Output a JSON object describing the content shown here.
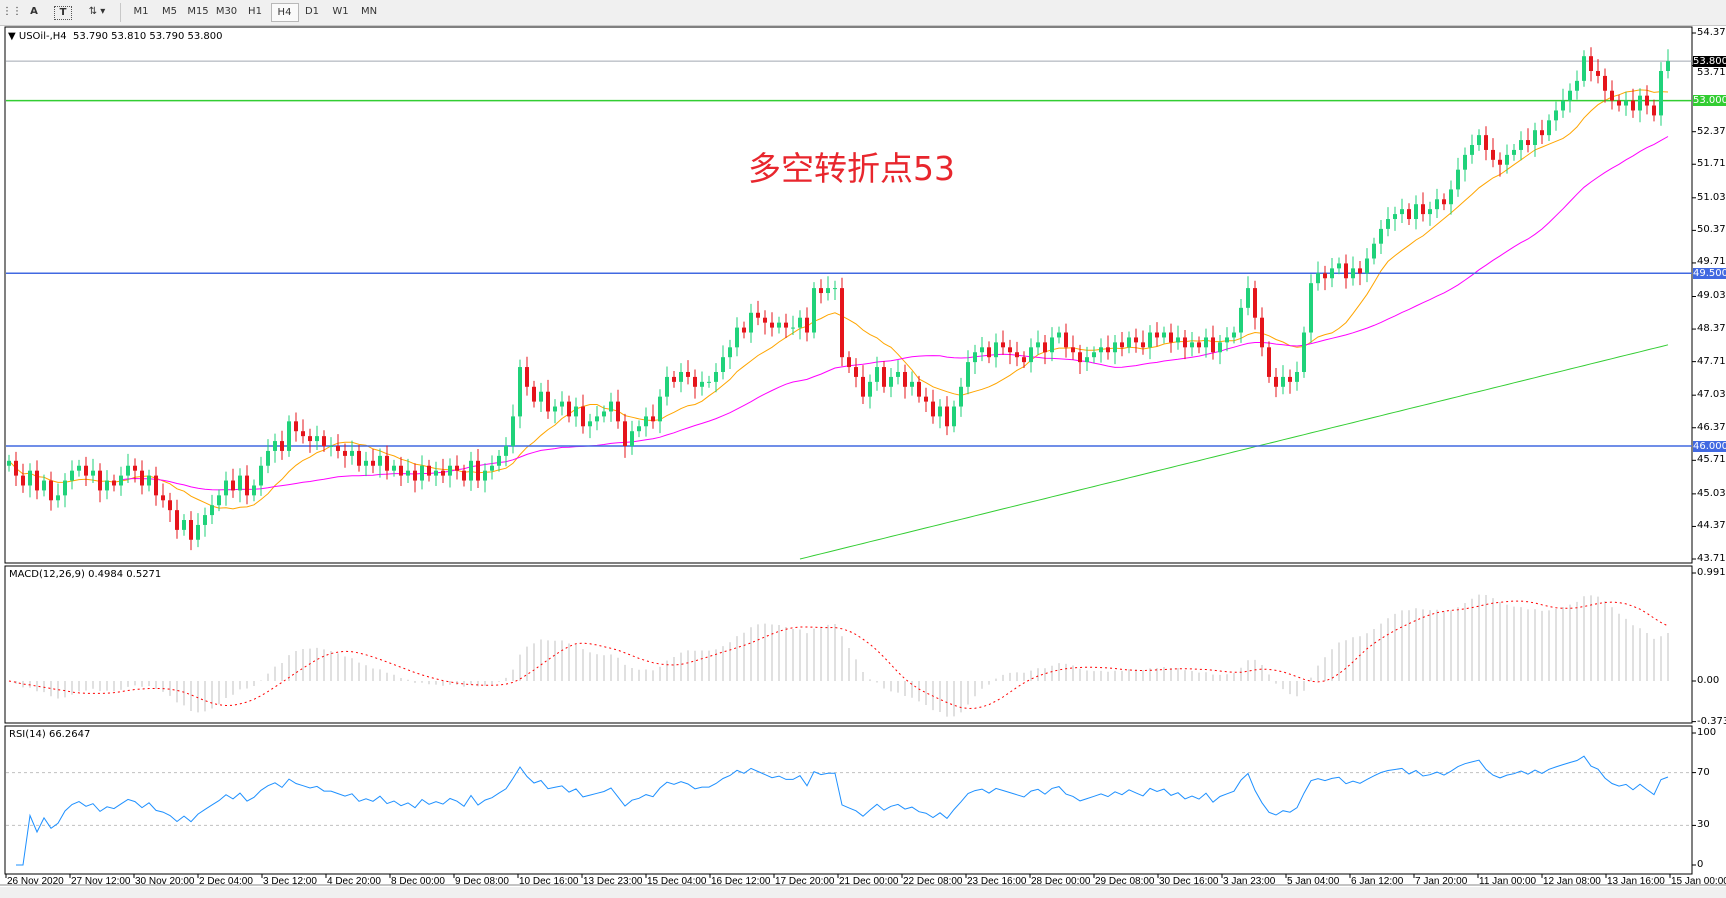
{
  "toolbar": {
    "icons": [
      "periods-grid-icon",
      "text-icon",
      "text-label-icon",
      "arrows-icon"
    ],
    "text_tool": "A",
    "timeframes": [
      "M1",
      "M5",
      "M15",
      "M30",
      "H1",
      "H4",
      "D1",
      "W1",
      "MN"
    ],
    "active_timeframe": "H4"
  },
  "header": {
    "symbol": "USOil-,H4",
    "ohlc": "53.790 53.810 53.790 53.800"
  },
  "annotation": {
    "text": "多空转折点53",
    "color": "#e8262d"
  },
  "price_axis": {
    "ticks": [
      "54.370",
      "53.710",
      "52.370",
      "51.710",
      "51.030",
      "50.370",
      "49.710",
      "49.030",
      "48.370",
      "47.710",
      "47.030",
      "46.370",
      "45.710",
      "45.030",
      "44.370",
      "43.710"
    ],
    "range": [
      43.71,
      54.37
    ]
  },
  "levels": [
    {
      "value": 53.8,
      "label": "53.800",
      "color": "#a0a8b0",
      "tag_color": "#000000"
    },
    {
      "value": 53.0,
      "label": "53.000",
      "color": "#32cd32",
      "tag_color": "#32cd32"
    },
    {
      "value": 49.5,
      "label": "49.500",
      "color": "#4169e1",
      "tag_color": "#4169e1"
    },
    {
      "value": 46.0,
      "label": "46.000",
      "color": "#4169e1",
      "tag_color": "#4169e1"
    }
  ],
  "macd": {
    "header": "MACD(12,26,9) 0.4984 0.5271",
    "ticks": [
      "0.9917",
      "0.00",
      "-0.373"
    ],
    "range": [
      -0.373,
      0.9917
    ]
  },
  "rsi": {
    "header": "RSI(14) 66.2647",
    "ticks": [
      "100",
      "70",
      "30",
      "0"
    ],
    "levels": [
      70,
      30
    ]
  },
  "time_axis": [
    "26 Nov 2020",
    "27 Nov 12:00",
    "30 Nov 20:00",
    "2 Dec 04:00",
    "3 Dec 12:00",
    "4 Dec 20:00",
    "8 Dec 00:00",
    "9 Dec 08:00",
    "10 Dec 16:00",
    "13 Dec 23:00",
    "15 Dec 04:00",
    "16 Dec 12:00",
    "17 Dec 20:00",
    "21 Dec 00:00",
    "22 Dec 08:00",
    "23 Dec 16:00",
    "28 Dec 00:00",
    "29 Dec 08:00",
    "30 Dec 16:00",
    "3 Jan 23:00",
    "5 Jan 04:00",
    "6 Jan 12:00",
    "7 Jan 20:00",
    "11 Jan 00:00",
    "12 Jan 08:00",
    "13 Jan 16:00",
    "15 Jan 00:00"
  ],
  "colors": {
    "bull": "#1fd27a",
    "bear": "#e5141b",
    "ma_fast": "#ffa500",
    "ma_mid": "#ff00ff",
    "ma_slow": "#32cd32",
    "macd_hist": "#c0c0c0",
    "macd_signal": "#ff0000",
    "rsi": "#1e90ff"
  },
  "chart_data": {
    "type": "candlestick",
    "symbol": "USOil-",
    "timeframe": "H4",
    "ylim": [
      43.71,
      54.37
    ],
    "closes": [
      45.7,
      45.4,
      45.2,
      45.5,
      45.1,
      45.3,
      44.9,
      45.0,
      45.3,
      45.5,
      45.6,
      45.4,
      45.5,
      45.1,
      45.3,
      45.2,
      45.4,
      45.6,
      45.5,
      45.2,
      45.4,
      45.0,
      44.9,
      44.7,
      44.3,
      44.5,
      44.1,
      44.4,
      44.6,
      44.8,
      45.0,
      45.3,
      45.1,
      45.4,
      45.0,
      45.2,
      45.6,
      45.9,
      46.1,
      45.9,
      46.5,
      46.3,
      46.2,
      46.1,
      46.2,
      46.0,
      46.0,
      45.9,
      45.8,
      45.9,
      45.6,
      45.7,
      45.6,
      45.8,
      45.5,
      45.6,
      45.4,
      45.5,
      45.3,
      45.6,
      45.4,
      45.5,
      45.4,
      45.6,
      45.5,
      45.3,
      45.7,
      45.3,
      45.5,
      45.6,
      45.8,
      46.0,
      46.6,
      47.6,
      47.2,
      46.9,
      47.1,
      46.7,
      46.8,
      46.9,
      46.6,
      46.8,
      46.4,
      46.5,
      46.6,
      46.7,
      46.9,
      46.5,
      46.0,
      46.3,
      46.4,
      46.6,
      46.5,
      47.0,
      47.4,
      47.3,
      47.5,
      47.4,
      47.2,
      47.3,
      47.3,
      47.5,
      47.8,
      48.0,
      48.4,
      48.3,
      48.7,
      48.6,
      48.5,
      48.4,
      48.5,
      48.4,
      48.4,
      48.6,
      48.3,
      49.2,
      49.1,
      49.2,
      49.2,
      47.8,
      47.6,
      47.4,
      47.0,
      47.3,
      47.6,
      47.2,
      47.4,
      47.5,
      47.2,
      47.3,
      47.0,
      46.9,
      46.6,
      46.8,
      46.4,
      46.8,
      47.2,
      47.7,
      47.9,
      48.0,
      47.8,
      48.1,
      48.0,
      47.9,
      47.8,
      47.7,
      48.0,
      48.1,
      47.9,
      48.2,
      48.3,
      48.0,
      47.9,
      47.7,
      47.8,
      47.9,
      48.0,
      47.9,
      48.1,
      48.0,
      48.2,
      48.1,
      48.0,
      48.3,
      48.2,
      48.3,
      48.1,
      48.2,
      48.0,
      48.1,
      48.0,
      48.2,
      47.9,
      48.1,
      48.2,
      48.3,
      48.8,
      49.2,
      48.6,
      48.0,
      47.4,
      47.2,
      47.4,
      47.3,
      47.5,
      48.3,
      49.3,
      49.5,
      49.4,
      49.6,
      49.7,
      49.4,
      49.6,
      49.5,
      49.8,
      50.1,
      50.4,
      50.6,
      50.7,
      50.8,
      50.6,
      50.9,
      50.7,
      50.8,
      51.0,
      50.9,
      51.2,
      51.6,
      51.9,
      52.1,
      52.3,
      52.0,
      51.8,
      51.7,
      51.9,
      52.0,
      52.2,
      52.1,
      52.4,
      52.3,
      52.6,
      52.8,
      53.0,
      53.2,
      53.4,
      53.9,
      53.6,
      53.5,
      53.2,
      53.0,
      52.9,
      53.0,
      52.8,
      53.1,
      52.9,
      52.7,
      53.6,
      53.8
    ]
  }
}
